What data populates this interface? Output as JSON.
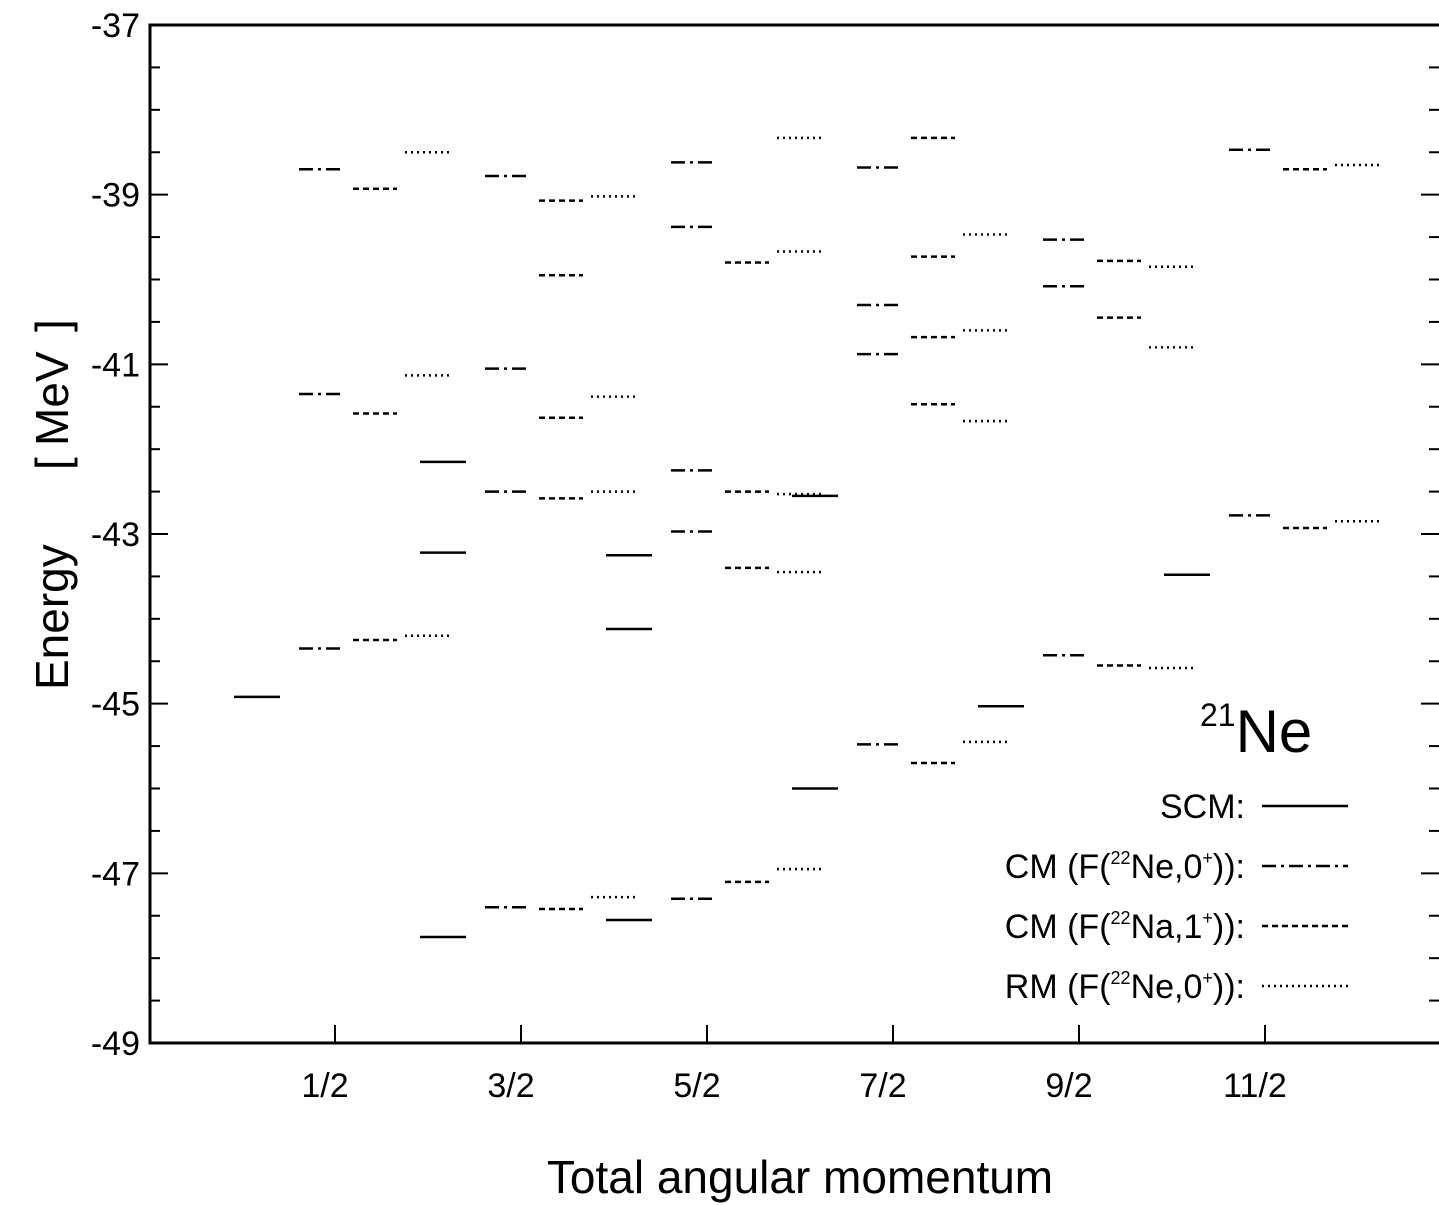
{
  "chart_data": {
    "type": "level-scheme",
    "xlabel": "Total angular momentum",
    "ylabel": "Energy",
    "ylabel_unit": "MeV",
    "categories": [
      "1/2",
      "3/2",
      "5/2",
      "7/2",
      "9/2",
      "11/2"
    ],
    "ylim": [
      -49,
      -37
    ],
    "yticks": [
      "-37",
      "-39",
      "-41",
      "-43",
      "-45",
      "-47",
      "-49"
    ],
    "nucleus": {
      "mass_number": "21",
      "symbol": "Ne"
    },
    "series": [
      {
        "name": "SCM:",
        "legend": {
          "prefix": "SCM:",
          "mid": "",
          "sup": "",
          "suffix": ""
        },
        "style": "solid",
        "levels": [
          [
            -44.92
          ],
          [
            -42.15,
            -43.22,
            -47.75
          ],
          [
            -43.25,
            -44.12,
            -47.55
          ],
          [
            -42.55,
            -46.0
          ],
          [
            -45.03
          ],
          [
            -43.48
          ]
        ]
      },
      {
        "name": "CM (F(22Ne,0+)):",
        "legend": {
          "prefix": "CM (F(",
          "mid": "Ne,0",
          "sup": "22",
          "suffix": ")):"
        },
        "style": "dashdot",
        "levels": [
          [
            -38.7,
            -41.35,
            -44.35
          ],
          [
            -38.78,
            -41.05,
            -42.5,
            -47.4
          ],
          [
            -38.62,
            -39.38,
            -42.25,
            -42.97,
            -47.3
          ],
          [
            -38.68,
            -40.3,
            -40.88,
            -45.48
          ],
          [
            -39.53,
            -40.08,
            -44.43
          ],
          [
            -38.47,
            -42.78
          ]
        ]
      },
      {
        "name": "CM (F(22Na,1+)):",
        "legend": {
          "prefix": "CM (F(",
          "mid": "Na,1",
          "sup": "22",
          "suffix": ")):"
        },
        "style": "dashed",
        "levels": [
          [
            -38.93,
            -41.58,
            -44.25
          ],
          [
            -39.07,
            -39.95,
            -41.63,
            -42.58,
            -47.42
          ],
          [
            -39.8,
            -42.5,
            -43.4,
            -47.1
          ],
          [
            -38.33,
            -39.73,
            -40.68,
            -41.47,
            -45.7
          ],
          [
            -39.78,
            -40.45,
            -44.55
          ],
          [
            -38.7,
            -42.93
          ]
        ]
      },
      {
        "name": "RM (F(22Ne,0+)):",
        "legend": {
          "prefix": "RM (F(",
          "mid": "Ne,0",
          "sup": "22",
          "suffix": ")):"
        },
        "style": "dotted",
        "levels": [
          [
            -38.5,
            -41.13,
            -44.2
          ],
          [
            -39.02,
            -41.38,
            -42.5,
            -47.28
          ],
          [
            -38.33,
            -39.67,
            -42.53,
            -43.45,
            -46.95
          ],
          [
            -39.47,
            -40.6,
            -41.67,
            -45.45
          ],
          [
            -39.85,
            -40.8,
            -44.58
          ],
          [
            -38.65,
            -42.85
          ]
        ]
      }
    ]
  }
}
